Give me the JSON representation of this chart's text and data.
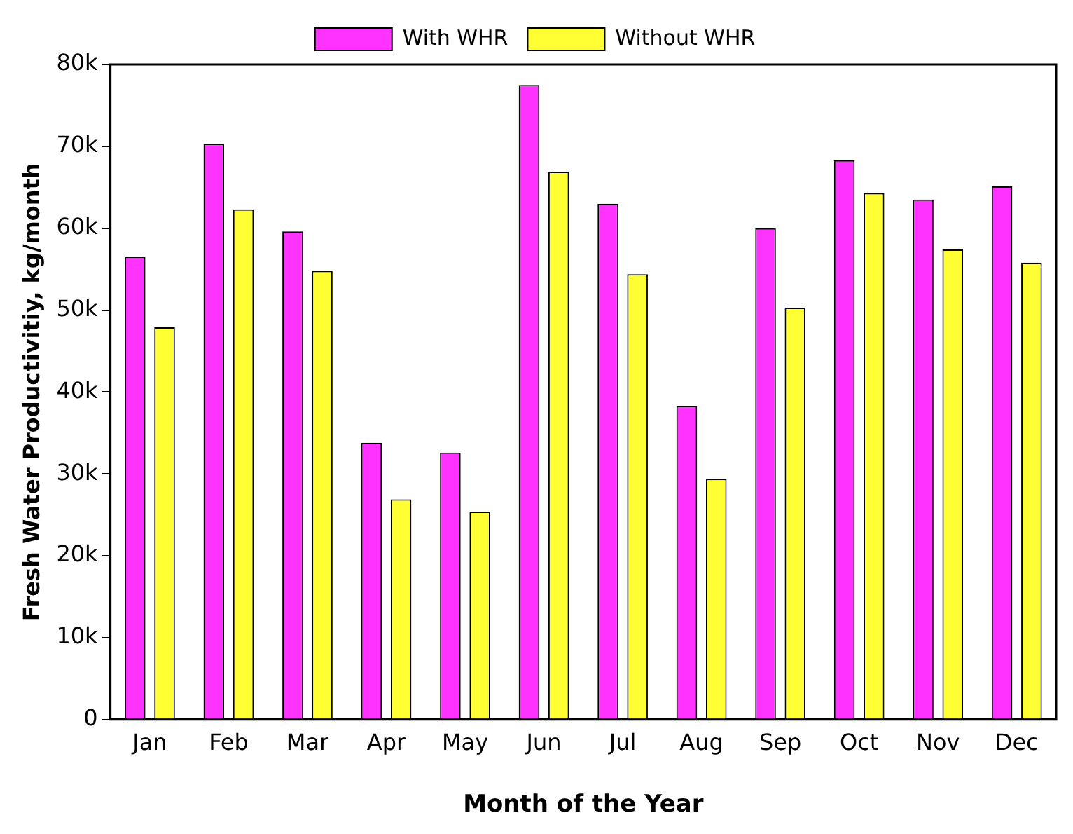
{
  "chart_data": {
    "type": "bar",
    "xlabel": "Month of the Year",
    "ylabel": "Fresh Water Productivitiy, kg/month",
    "categories": [
      "Jan",
      "Feb",
      "Mar",
      "Apr",
      "May",
      "Jun",
      "Jul",
      "Aug",
      "Sep",
      "Oct",
      "Nov",
      "Dec"
    ],
    "series": [
      {
        "name": "With WHR",
        "color": "#ff33ff",
        "values": [
          56500,
          70300,
          59600,
          33800,
          32600,
          77500,
          63000,
          38300,
          60000,
          68300,
          63500,
          65100
        ]
      },
      {
        "name": "Without WHR",
        "color": "#ffff33",
        "values": [
          47900,
          62300,
          54800,
          26900,
          25400,
          66900,
          54400,
          29400,
          50300,
          64300,
          57400,
          55800
        ]
      }
    ],
    "ylim": [
      0,
      80000
    ],
    "yticks": [
      0,
      {
        "value": 10000,
        "label": "10k"
      },
      {
        "value": 20000,
        "label": "20k"
      },
      {
        "value": 30000,
        "label": "30k"
      },
      {
        "value": 40000,
        "label": "40k"
      },
      {
        "value": 50000,
        "label": "50k"
      },
      {
        "value": 60000,
        "label": "60k"
      },
      {
        "value": 70000,
        "label": "70k"
      },
      {
        "value": 80000,
        "label": "80k"
      }
    ],
    "grid": false,
    "legend": "top"
  }
}
